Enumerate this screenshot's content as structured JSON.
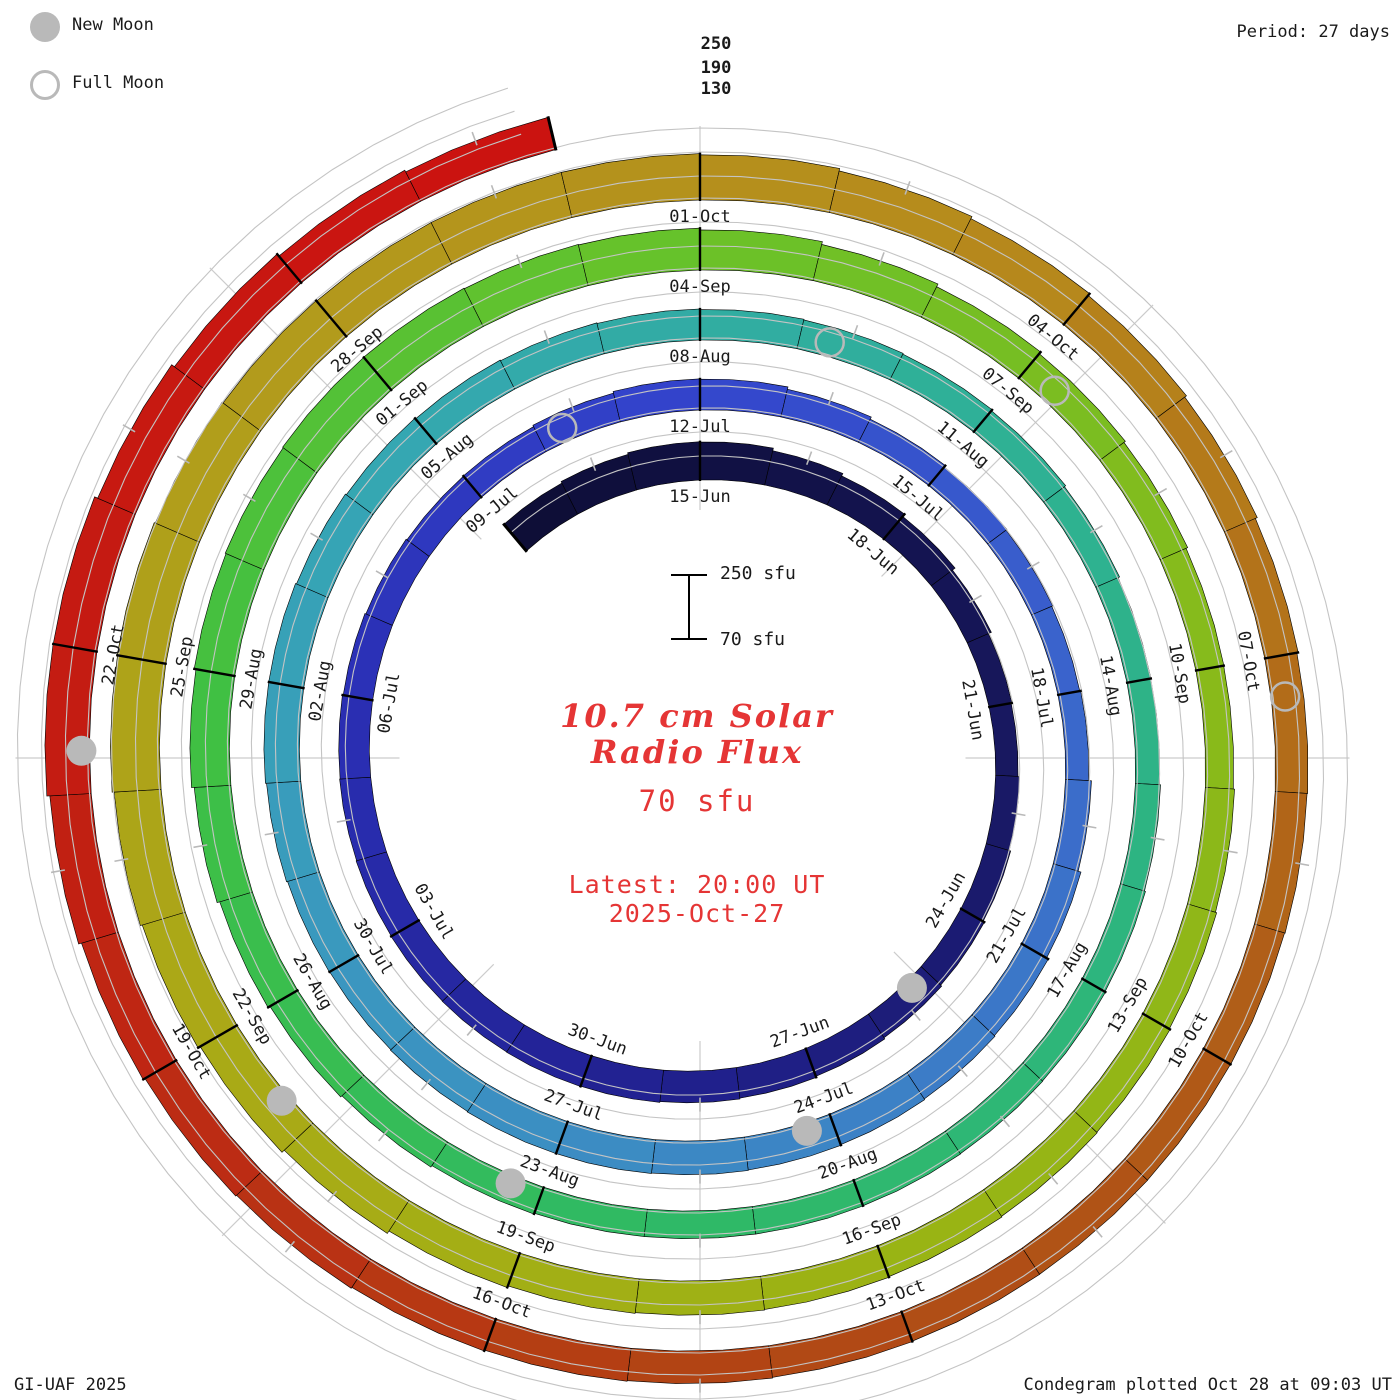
{
  "legend": {
    "new_moon_label": "New Moon",
    "full_moon_label": "Full Moon"
  },
  "header": {
    "period_label": "Period: 27 days"
  },
  "radial_axis": {
    "labels": [
      "250",
      "190",
      "130"
    ]
  },
  "scale_bar": {
    "top_label": "250 sfu",
    "bottom_label": "70 sfu"
  },
  "center": {
    "title_line1": "10.7 cm Solar",
    "title_line2": "Radio Flux",
    "unit_label": "70 sfu",
    "latest_line1": "Latest: 20:00 UT",
    "latest_line2": "2025-Oct-27"
  },
  "footer": {
    "left": "GI-UAF 2025",
    "right": "Condegram plotted Oct 28 at 09:03 UT"
  },
  "colors": {
    "accent_red": "#e53535",
    "moon_gray": "#b9b9b9",
    "grid_gray": "#c4c4c4",
    "spoke_gray": "#cccccc",
    "bar_outline": "#000000",
    "label_color": "#1a1a1a",
    "ramp": [
      [
        0.0,
        "#0d0d35"
      ],
      [
        0.065,
        "#17175c"
      ],
      [
        0.13,
        "#222294"
      ],
      [
        0.174,
        "#2a2fb4"
      ],
      [
        0.217,
        "#3344cc"
      ],
      [
        0.261,
        "#3a64cc"
      ],
      [
        0.304,
        "#3c82c6"
      ],
      [
        0.348,
        "#3b97c0"
      ],
      [
        0.391,
        "#35a7b2"
      ],
      [
        0.435,
        "#2fb098"
      ],
      [
        0.478,
        "#2db57e"
      ],
      [
        0.522,
        "#30ba62"
      ],
      [
        0.565,
        "#3fc043"
      ],
      [
        0.609,
        "#66c22b"
      ],
      [
        0.652,
        "#85bb1c"
      ],
      [
        0.696,
        "#99b414"
      ],
      [
        0.739,
        "#a9ab16"
      ],
      [
        0.783,
        "#b29c1c"
      ],
      [
        0.826,
        "#b68a1c"
      ],
      [
        0.87,
        "#b06018"
      ],
      [
        0.891,
        "#b05016"
      ],
      [
        0.913,
        "#b34113"
      ],
      [
        0.935,
        "#bb2e14"
      ],
      [
        0.957,
        "#c31d12"
      ],
      [
        1.0,
        "#cc1210"
      ]
    ]
  },
  "chart_data": {
    "type": "spiral_bar_condegram",
    "title": "10.7 cm Solar Radio Flux",
    "period_days": 27,
    "baseline_sfu": 70,
    "gridlines_sfu": [
      130,
      190,
      250
    ],
    "start_date": "2025-06-12",
    "end_date": "2025-10-27",
    "top_of_circle_dates": [
      "15-Jun",
      "12-Jul",
      "08-Aug",
      "04-Sep",
      "01-Oct"
    ],
    "anchors": [
      {
        "date": "2025-06-12",
        "label": "",
        "flux": 155
      },
      {
        "date": "2025-06-15",
        "label": "15-Jun",
        "flux": 168
      },
      {
        "date": "2025-06-18",
        "label": "18-Jun",
        "flux": 148
      },
      {
        "date": "2025-06-21",
        "label": "21-Jun",
        "flux": 124
      },
      {
        "date": "2025-06-24",
        "label": "24-Jun",
        "flux": 136
      },
      {
        "date": "2025-06-27",
        "label": "27-Jun",
        "flux": 146
      },
      {
        "date": "2025-06-30",
        "label": "30-Jun",
        "flux": 152
      },
      {
        "date": "2025-07-03",
        "label": "03-Jul",
        "flux": 150
      },
      {
        "date": "2025-07-06",
        "label": "06-Jul",
        "flux": 146
      },
      {
        "date": "2025-07-09",
        "label": "09-Jul",
        "flux": 138
      },
      {
        "date": "2025-07-12",
        "label": "12-Jul",
        "flux": 150
      },
      {
        "date": "2025-07-15",
        "label": "15-Jul",
        "flux": 132
      },
      {
        "date": "2025-07-18",
        "label": "18-Jul",
        "flux": 124
      },
      {
        "date": "2025-07-21",
        "label": "21-Jul",
        "flux": 146
      },
      {
        "date": "2025-07-24",
        "label": "24-Jul",
        "flux": 152
      },
      {
        "date": "2025-07-27",
        "label": "27-Jul",
        "flux": 156
      },
      {
        "date": "2025-07-30",
        "label": "30-Jul",
        "flux": 152
      },
      {
        "date": "2025-08-02",
        "label": "02-Aug",
        "flux": 160
      },
      {
        "date": "2025-08-05",
        "label": "05-Aug",
        "flux": 152
      },
      {
        "date": "2025-08-08",
        "label": "08-Aug",
        "flux": 147
      },
      {
        "date": "2025-08-11",
        "label": "11-Aug",
        "flux": 141
      },
      {
        "date": "2025-08-14",
        "label": "14-Aug",
        "flux": 129
      },
      {
        "date": "2025-08-17",
        "label": "17-Aug",
        "flux": 137
      },
      {
        "date": "2025-08-20",
        "label": "20-Aug",
        "flux": 139
      },
      {
        "date": "2025-08-23",
        "label": "23-Aug",
        "flux": 139
      },
      {
        "date": "2025-08-26",
        "label": "26-Aug",
        "flux": 152
      },
      {
        "date": "2025-08-29",
        "label": "29-Aug",
        "flux": 172
      },
      {
        "date": "2025-09-01",
        "label": "01-Sep",
        "flux": 178
      },
      {
        "date": "2025-09-04",
        "label": "04-Sep",
        "flux": 174
      },
      {
        "date": "2025-09-07",
        "label": "07-Sep",
        "flux": 152
      },
      {
        "date": "2025-09-10",
        "label": "10-Sep",
        "flux": 139
      },
      {
        "date": "2025-09-13",
        "label": "13-Sep",
        "flux": 148
      },
      {
        "date": "2025-09-16",
        "label": "16-Sep",
        "flux": 153
      },
      {
        "date": "2025-09-19",
        "label": "19-Sep",
        "flux": 158
      },
      {
        "date": "2025-09-22",
        "label": "22-Sep",
        "flux": 180
      },
      {
        "date": "2025-09-25",
        "label": "25-Sep",
        "flux": 195
      },
      {
        "date": "2025-09-28",
        "label": "28-Sep",
        "flux": 186
      },
      {
        "date": "2025-10-01",
        "label": "01-Oct",
        "flux": 186
      },
      {
        "date": "2025-10-04",
        "label": "04-Oct",
        "flux": 168
      },
      {
        "date": "2025-10-07",
        "label": "07-Oct",
        "flux": 152
      },
      {
        "date": "2025-10-10",
        "label": "10-Oct",
        "flux": 148
      },
      {
        "date": "2025-10-13",
        "label": "13-Oct",
        "flux": 149
      },
      {
        "date": "2025-10-16",
        "label": "16-Oct",
        "flux": 154
      },
      {
        "date": "2025-10-19",
        "label": "19-Oct",
        "flux": 162
      },
      {
        "date": "2025-10-22",
        "label": "22-Oct",
        "flux": 185
      },
      {
        "date": "2025-10-25",
        "label": "",
        "flux": 160
      },
      {
        "date": "2025-10-27",
        "label": "",
        "flux": 150
      }
    ],
    "moon_events": {
      "new": [
        "2025-06-25",
        "2025-07-24",
        "2025-08-23",
        "2025-09-21",
        "2025-10-21"
      ],
      "full": [
        "2025-07-10",
        "2025-08-09",
        "2025-09-07",
        "2025-10-07"
      ]
    }
  }
}
